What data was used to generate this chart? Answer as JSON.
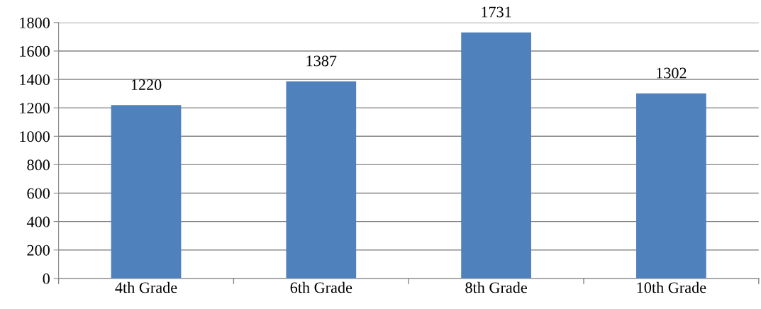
{
  "chart_data": {
    "type": "bar",
    "categories": [
      "4th Grade",
      "6th Grade",
      "8th Grade",
      "10th Grade"
    ],
    "values": [
      1220,
      1387,
      1731,
      1302
    ],
    "color": "#4f81bd",
    "ylim": [
      0,
      1800
    ],
    "yticks": [
      0,
      200,
      400,
      600,
      800,
      1000,
      1200,
      1400,
      1600,
      1800
    ],
    "grid": "y",
    "data_labels": true,
    "legend": false
  }
}
